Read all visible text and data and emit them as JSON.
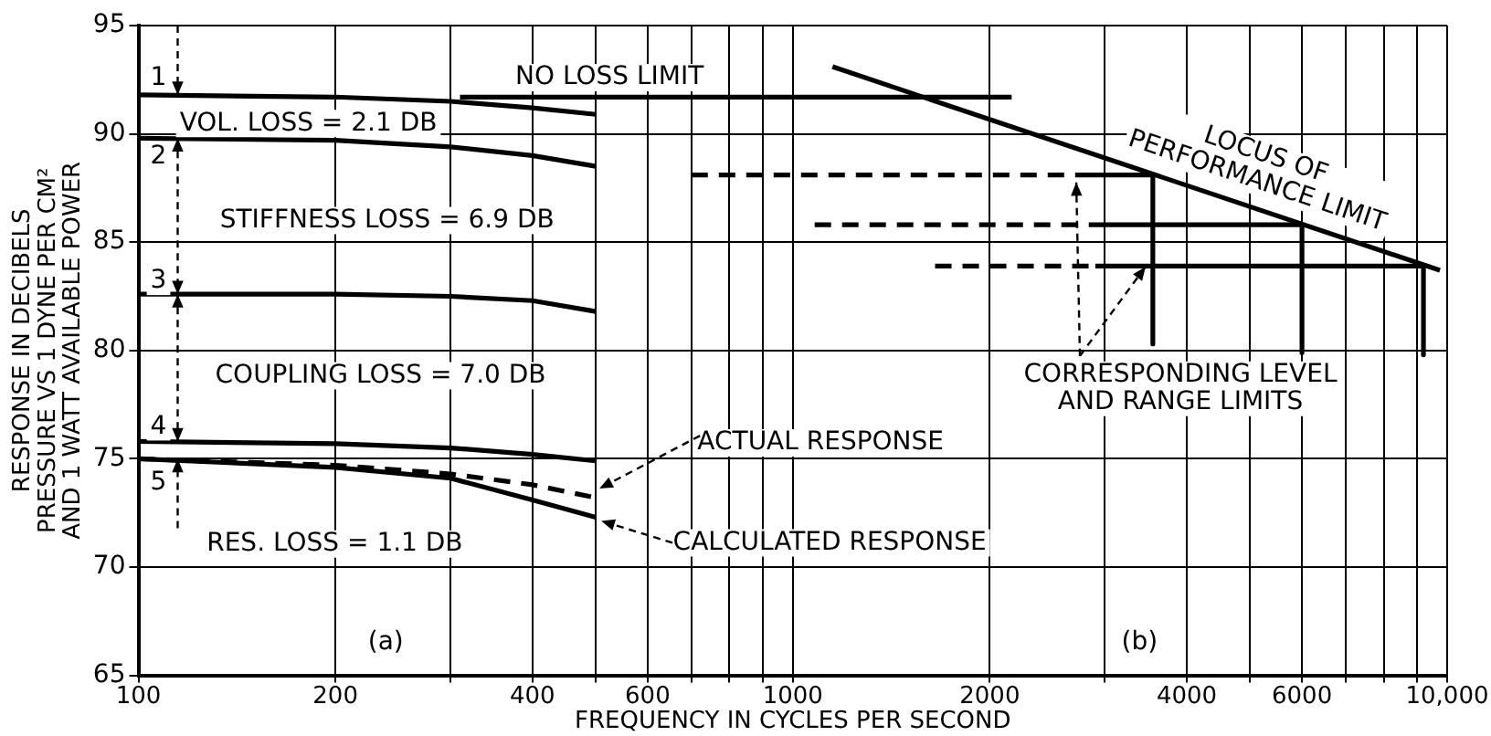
{
  "chart_data": {
    "type": "line",
    "xlabel": "FREQUENCY IN CYCLES PER SECOND",
    "ylabel": "RESPONSE IN DECIBELS\nPRESSURE VS 1 DYNE PER CM²\nAND 1 WATT AVAILABLE POWER",
    "log": "x",
    "grid": true,
    "legend": false,
    "xlim": [
      100,
      10000
    ],
    "ylim": [
      65,
      95
    ],
    "xticks": [
      100,
      200,
      {
        "value": 300,
        "label": null
      },
      400,
      {
        "value": 500,
        "label": null
      },
      600,
      {
        "value": 700,
        "label": null
      },
      {
        "value": 800,
        "label": null
      },
      {
        "value": 900,
        "label": null
      },
      1000,
      2000,
      {
        "value": 3000,
        "label": null
      },
      4000,
      {
        "value": 5000,
        "label": null
      },
      6000,
      {
        "value": 7000,
        "label": null
      },
      {
        "value": 8000,
        "label": null
      },
      {
        "value": 9000,
        "label": null
      },
      {
        "value": 10000,
        "label": "10,000"
      }
    ],
    "yticks": [
      65,
      70,
      75,
      80,
      85,
      90,
      95
    ],
    "series": [
      {
        "color": "#000000",
        "x": [
          100,
          200,
          300,
          400,
          500
        ],
        "values": [
          91.8,
          91.7,
          91.5,
          91.2,
          90.9
        ]
      },
      {
        "color": "#000000",
        "x": [
          100,
          200,
          300,
          400,
          500
        ],
        "values": [
          89.8,
          89.7,
          89.4,
          89.0,
          88.5
        ]
      },
      {
        "color": "#000000",
        "x": [
          100,
          200,
          300,
          400,
          500
        ],
        "values": [
          82.6,
          82.6,
          82.5,
          82.3,
          81.8
        ]
      },
      {
        "color": "#000000",
        "x": [
          100,
          200,
          300,
          400,
          500
        ],
        "values": [
          75.8,
          75.7,
          75.5,
          75.2,
          74.9
        ]
      },
      {
        "color": "#000000",
        "x": [
          100,
          200,
          300,
          400,
          500
        ],
        "values": [
          75.0,
          74.6,
          74.1,
          73.1,
          72.3
        ]
      },
      {
        "color": "#000000",
        "line_style": "dashed",
        "x": [
          100,
          200,
          300,
          400,
          500
        ],
        "values": [
          75.0,
          74.7,
          74.3,
          73.8,
          73.2
        ]
      },
      {
        "color": "#000000",
        "x": [
          310,
          2160
        ],
        "values": [
          91.7,
          91.7
        ]
      },
      {
        "color": "#000000",
        "x": [
          1150,
          9750
        ],
        "values": [
          93.1,
          83.7
        ]
      },
      {
        "color": "#000000",
        "line_style": "dashed",
        "x": [
          700,
          2800
        ],
        "values": [
          88.1,
          88.1
        ]
      },
      {
        "color": "#000000",
        "x": [
          2800,
          3550,
          3550
        ],
        "values": [
          88.1,
          88.1,
          80.3
        ]
      },
      {
        "color": "#000000",
        "line_style": "dashed",
        "x": [
          1080,
          2900
        ],
        "values": [
          85.8,
          85.8
        ]
      },
      {
        "color": "#000000",
        "x": [
          2900,
          6000,
          6000
        ],
        "values": [
          85.8,
          85.8,
          79.9
        ]
      },
      {
        "color": "#000000",
        "line_style": "dashed",
        "x": [
          1650,
          2900
        ],
        "values": [
          83.9,
          83.9
        ]
      },
      {
        "color": "#000000",
        "x": [
          2900,
          9200,
          9200
        ],
        "values": [
          83.9,
          83.9,
          79.8
        ]
      }
    ],
    "annotations": [
      "NO LOSS LIMIT",
      {
        "text": "VOL. LOSS = 2.1 DB",
        "x": 100,
        "y": 89.8
      },
      "STIFFNESS LOSS = 6.9 DB",
      "COUPLING LOSS = 7.0 DB",
      "RES. LOSS = 1.1 DB",
      {
        "text": "ACTUAL RESPONSE",
        "x": 500,
        "y": 73.2
      },
      {
        "text": "CALCULATED RESPONSE",
        "x": 500,
        "y": 72.3
      },
      "LOCUS OF\nPERFORMANCE LIMIT",
      {
        "text": "CORRESPONDING LEVEL\nAND RANGE LIMITS",
        "x": 2800,
        "y": 88.1
      },
      "(a)",
      "(b)",
      {
        "text": "1",
        "x": 100,
        "y": 91.8
      },
      {
        "text": "2",
        "x": 100,
        "y": 89.8
      },
      {
        "text": "3",
        "x": 100,
        "y": 82.6
      },
      {
        "text": "4",
        "x": 100,
        "y": 75.8
      },
      {
        "text": "5",
        "x": 100,
        "y": 75.0
      }
    ]
  }
}
